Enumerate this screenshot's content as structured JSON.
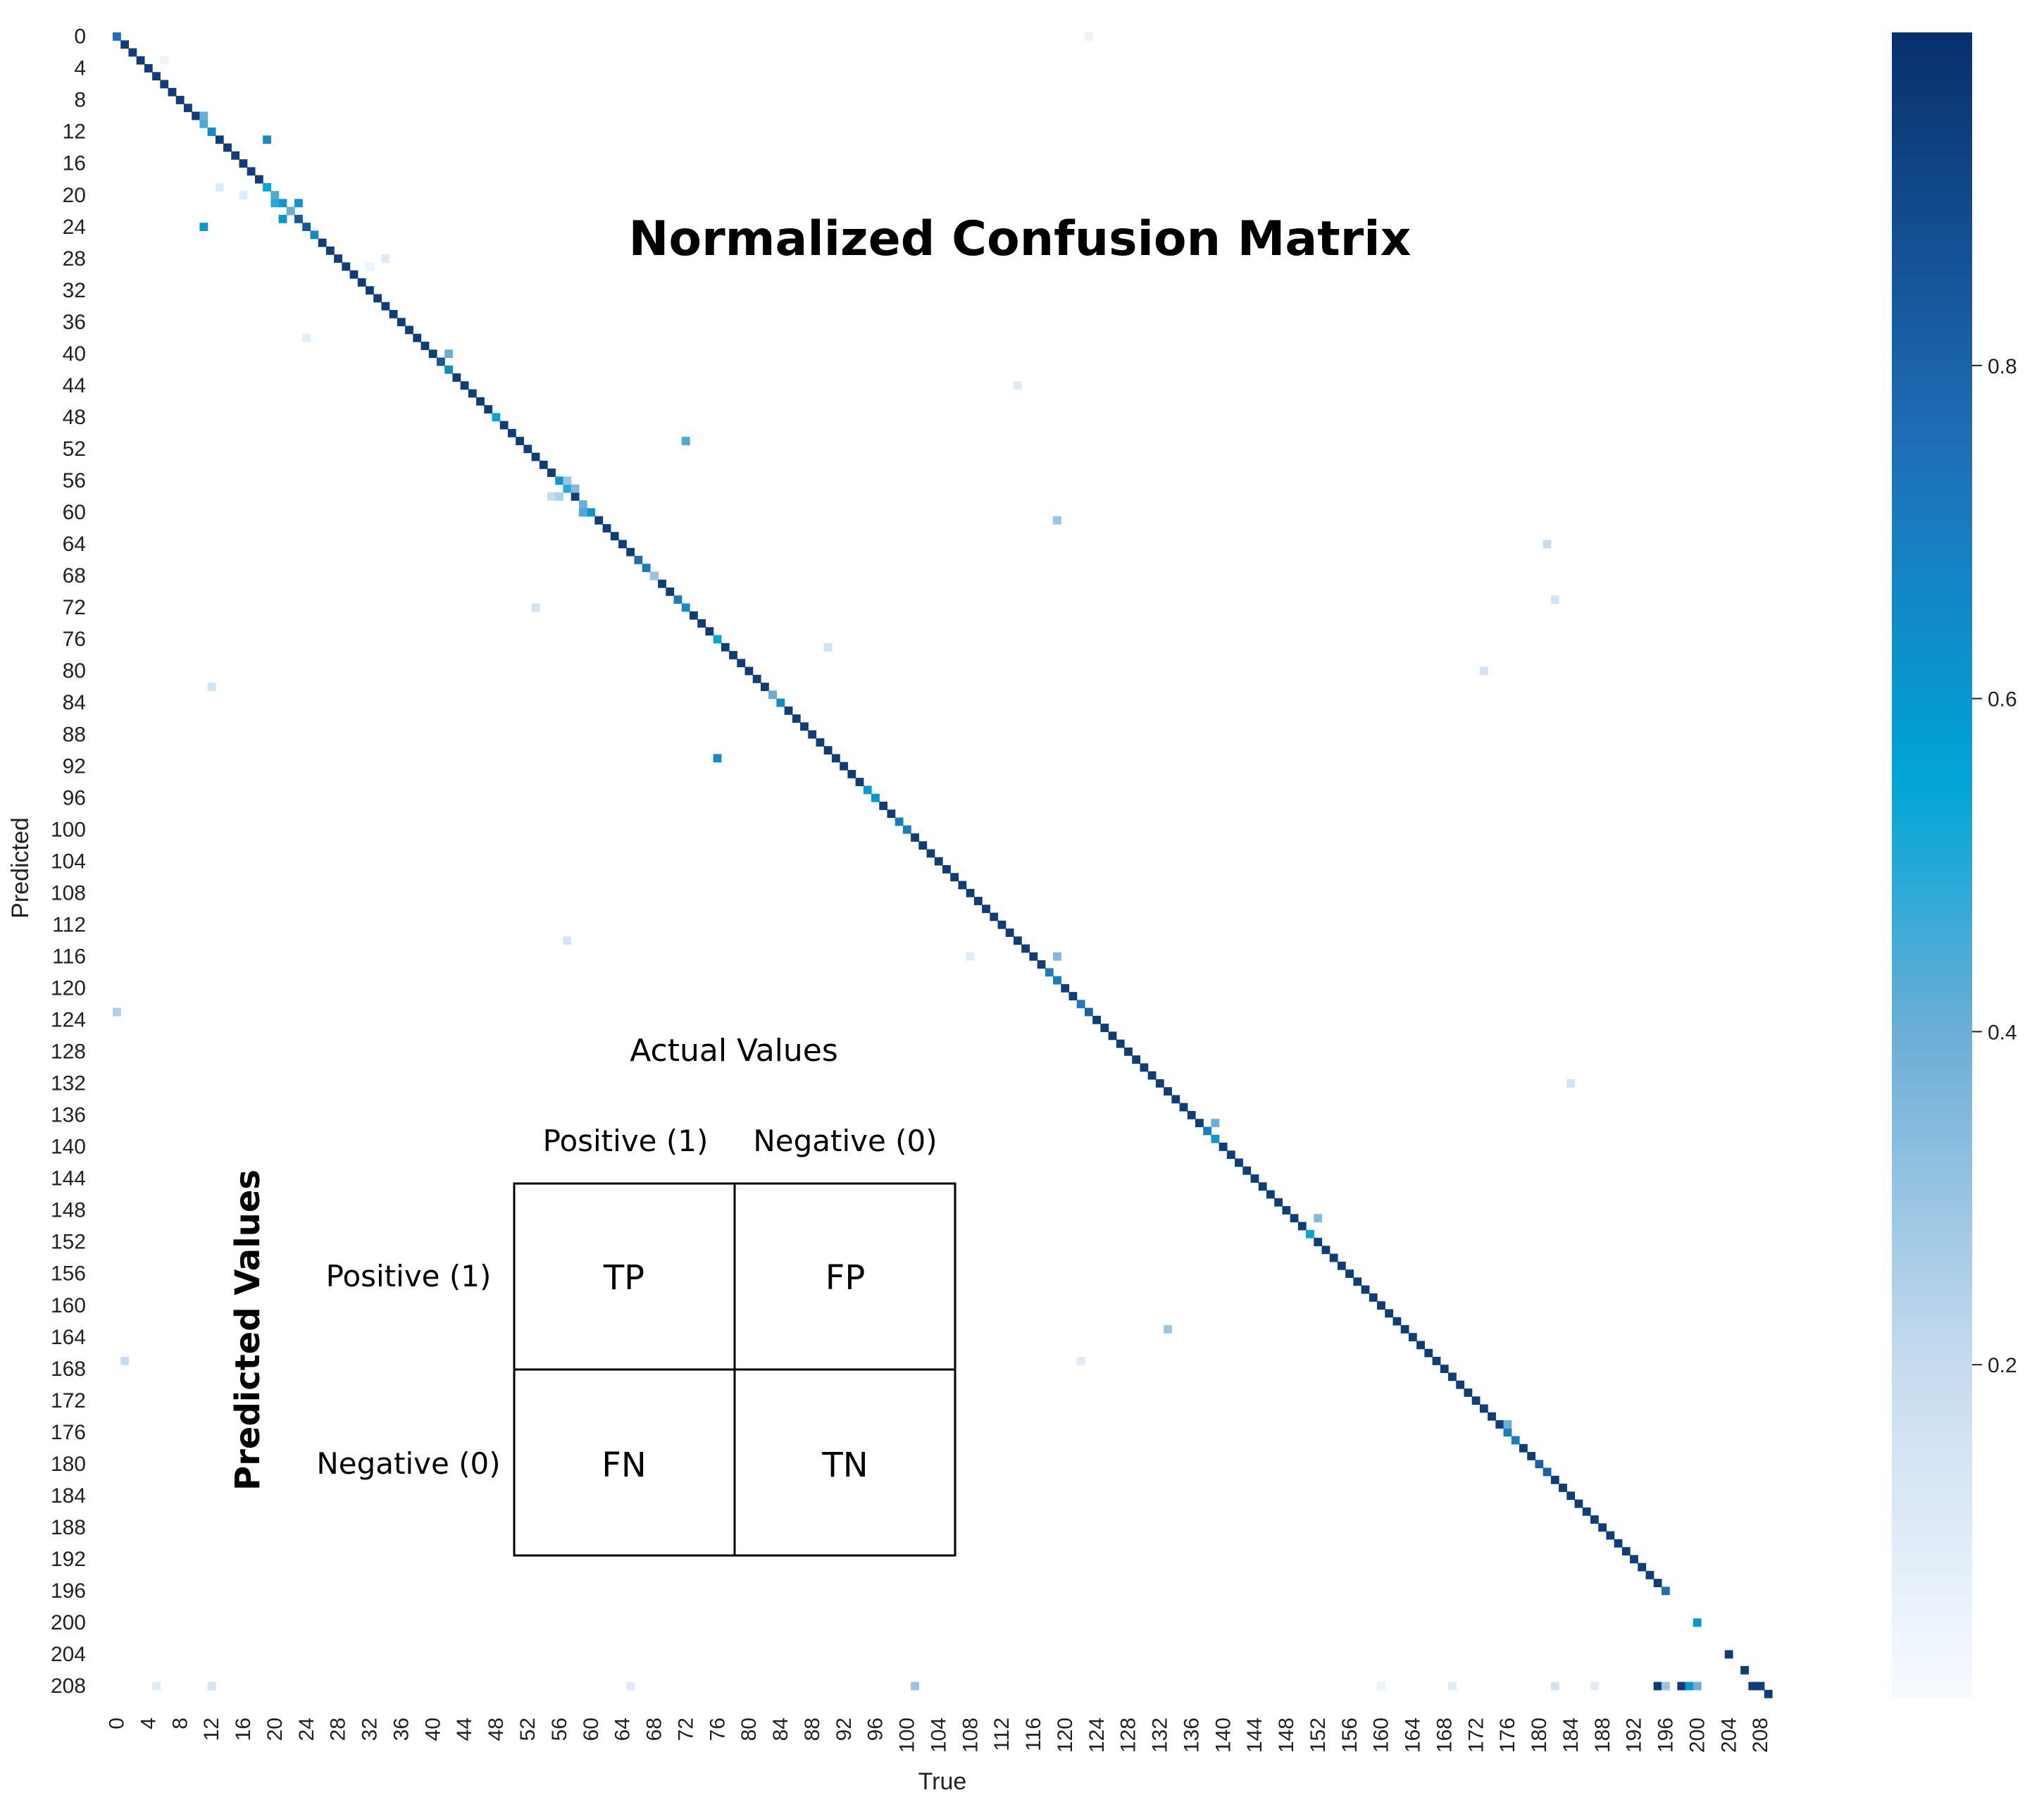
{
  "chart_data": {
    "type": "heatmap",
    "title": "Normalized Confusion Matrix",
    "xlabel": "True",
    "ylabel": "Predicted",
    "n_classes": 210,
    "tick_step": 4,
    "x_ticks": [
      "0",
      "4",
      "8",
      "12",
      "16",
      "20",
      "24",
      "28",
      "32",
      "36",
      "40",
      "44",
      "48",
      "52",
      "56",
      "60",
      "64",
      "68",
      "72",
      "76",
      "80",
      "84",
      "88",
      "92",
      "96",
      "100",
      "104",
      "108",
      "112",
      "116",
      "120",
      "124",
      "128",
      "132",
      "136",
      "140",
      "144",
      "148",
      "152",
      "156",
      "160",
      "164",
      "168",
      "172",
      "176",
      "180",
      "184",
      "188",
      "192",
      "196",
      "200",
      "204",
      "208"
    ],
    "y_ticks": [
      "0",
      "4",
      "8",
      "12",
      "16",
      "20",
      "24",
      "28",
      "32",
      "36",
      "40",
      "44",
      "48",
      "52",
      "56",
      "60",
      "64",
      "68",
      "72",
      "76",
      "80",
      "84",
      "88",
      "92",
      "96",
      "100",
      "104",
      "108",
      "112",
      "116",
      "120",
      "124",
      "128",
      "132",
      "136",
      "140",
      "144",
      "148",
      "152",
      "156",
      "160",
      "164",
      "168",
      "172",
      "176",
      "180",
      "184",
      "188",
      "192",
      "196",
      "200",
      "204",
      "208"
    ],
    "colorbar": {
      "min": 0.0,
      "max": 1.0,
      "ticks": [
        "0.2",
        "0.4",
        "0.6",
        "0.8"
      ],
      "tick_values": [
        0.2,
        0.4,
        0.6,
        0.8
      ],
      "colormap": "Blues"
    },
    "diagonal_default": 0.95,
    "diagonal_overrides": [
      [
        0,
        0.75
      ],
      [
        11,
        0.45
      ],
      [
        12,
        0.65
      ],
      [
        19,
        0.55
      ],
      [
        20,
        0.45
      ],
      [
        21,
        0.6
      ],
      [
        22,
        0.5
      ],
      [
        23,
        0.85
      ],
      [
        24,
        0.85
      ],
      [
        25,
        0.65
      ],
      [
        41,
        0.85
      ],
      [
        42,
        0.65
      ],
      [
        48,
        0.55
      ],
      [
        56,
        0.6
      ],
      [
        57,
        0.5
      ],
      [
        59,
        0.4
      ],
      [
        60,
        0.6
      ],
      [
        66,
        0.75
      ],
      [
        67,
        0.7
      ],
      [
        71,
        0.7
      ],
      [
        72,
        0.65
      ],
      [
        76,
        0.55
      ],
      [
        83,
        0.5
      ],
      [
        84,
        0.65
      ],
      [
        95,
        0.6
      ],
      [
        96,
        0.6
      ],
      [
        99,
        0.7
      ],
      [
        100,
        0.7
      ],
      [
        118,
        0.7
      ],
      [
        119,
        0.7
      ],
      [
        122,
        0.7
      ],
      [
        123,
        0.8
      ],
      [
        138,
        0.7
      ],
      [
        139,
        0.6
      ],
      [
        151,
        0.55
      ],
      [
        176,
        0.7
      ],
      [
        177,
        0.7
      ],
      [
        180,
        0.8
      ],
      [
        181,
        0.8
      ],
      [
        196,
        0.75
      ],
      [
        200,
        0.6
      ],
      [
        204,
        0.95
      ],
      [
        206,
        0.95
      ],
      [
        208,
        0.95
      ],
      [
        209,
        0.95
      ]
    ],
    "off_diagonal": [
      [
        123,
        0,
        0.05
      ],
      [
        6,
        3,
        0.05
      ],
      [
        11,
        10,
        0.4
      ],
      [
        19,
        13,
        0.65
      ],
      [
        13,
        19,
        0.1
      ],
      [
        16,
        20,
        0.1
      ],
      [
        20,
        21,
        0.5
      ],
      [
        23,
        21,
        0.6
      ],
      [
        11,
        24,
        0.6
      ],
      [
        21,
        23,
        0.6
      ],
      [
        22,
        22,
        0.4
      ],
      [
        34,
        28,
        0.1
      ],
      [
        32,
        29,
        0.05
      ],
      [
        24,
        38,
        0.08
      ],
      [
        42,
        40,
        0.4
      ],
      [
        114,
        44,
        0.1
      ],
      [
        72,
        51,
        0.45
      ],
      [
        55,
        58,
        0.2
      ],
      [
        56,
        58,
        0.25
      ],
      [
        57,
        56,
        0.3
      ],
      [
        58,
        57,
        0.35
      ],
      [
        59,
        60,
        0.45
      ],
      [
        119,
        61,
        0.3
      ],
      [
        181,
        64,
        0.2
      ],
      [
        68,
        68,
        0.3
      ],
      [
        182,
        71,
        0.15
      ],
      [
        53,
        72,
        0.15
      ],
      [
        90,
        77,
        0.15
      ],
      [
        12,
        82,
        0.15
      ],
      [
        173,
        80,
        0.15
      ],
      [
        83,
        83,
        0.4
      ],
      [
        76,
        91,
        0.65
      ],
      [
        57,
        114,
        0.15
      ],
      [
        108,
        116,
        0.1
      ],
      [
        119,
        116,
        0.35
      ],
      [
        0,
        123,
        0.25
      ],
      [
        184,
        132,
        0.15
      ],
      [
        139,
        137,
        0.4
      ],
      [
        152,
        149,
        0.35
      ],
      [
        133,
        163,
        0.3
      ],
      [
        1,
        167,
        0.2
      ],
      [
        122,
        167,
        0.1
      ],
      [
        176,
        175,
        0.4
      ],
      [
        196,
        197,
        0.0
      ],
      [
        200,
        199,
        0.0
      ],
      [
        5,
        208,
        0.1
      ],
      [
        12,
        208,
        0.15
      ],
      [
        65,
        208,
        0.1
      ],
      [
        101,
        208,
        0.3
      ],
      [
        160,
        208,
        0.05
      ],
      [
        169,
        208,
        0.1
      ],
      [
        182,
        208,
        0.15
      ],
      [
        187,
        208,
        0.1
      ],
      [
        195,
        208,
        0.95
      ],
      [
        196,
        208,
        0.3
      ],
      [
        198,
        208,
        0.95
      ],
      [
        199,
        208,
        0.6
      ],
      [
        200,
        208,
        0.4
      ],
      [
        207,
        208,
        0.95
      ]
    ],
    "inset": {
      "heading": "Actual Values",
      "col_labels": [
        "Positive (1)",
        "Negative (0)"
      ],
      "row_heading": "Predicted Values",
      "row_labels": [
        "Positive (1)",
        "Negative (0)"
      ],
      "cells": [
        [
          "TP",
          "FP"
        ],
        [
          "FN",
          "TN"
        ]
      ]
    }
  }
}
